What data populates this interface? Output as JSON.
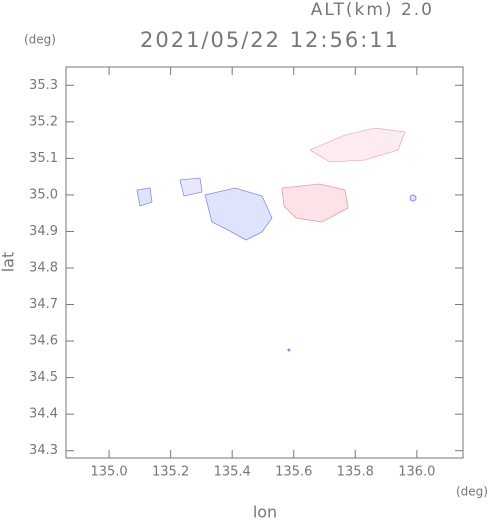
{
  "chart_data": {
    "type": "map",
    "title": "2021/05/22 12:56:11",
    "subtitle": "ALT(km) 2.0",
    "x_label": "lon",
    "y_label": "lat",
    "x_unit": "(deg)",
    "y_unit": "(deg)",
    "xlim": [
      134.86,
      136.15
    ],
    "ylim": [
      34.28,
      35.35
    ],
    "xticks": [
      {
        "value": 135,
        "label": "135.0"
      },
      135.2,
      135.4,
      135.6,
      135.8,
      {
        "value": 136,
        "label": "136.0"
      }
    ],
    "yticks": [
      35.3,
      35.2,
      35.1,
      {
        "value": 35,
        "label": "35.0"
      },
      34.9,
      34.8,
      34.7,
      34.6,
      34.5,
      34.4,
      34.3
    ]
  }
}
